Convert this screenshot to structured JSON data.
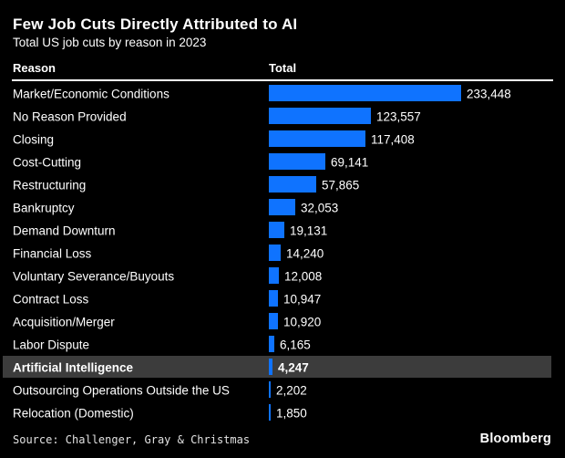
{
  "header": {
    "title": "Few Job Cuts Directly Attributed to AI",
    "subtitle": "Total US job cuts by reason in 2023"
  },
  "table": {
    "columns": {
      "reason": "Reason",
      "total": "Total"
    }
  },
  "chart_data": {
    "type": "bar",
    "orientation": "horizontal",
    "title": "Few Job Cuts Directly Attributed to AI",
    "subtitle": "Total US job cuts by reason in 2023",
    "xlabel": "Total",
    "ylabel": "Reason",
    "xlim": [
      0,
      233448
    ],
    "grid": false,
    "legend": false,
    "bar_color": "#0f73ff",
    "highlight_bg": "#3c3c3c",
    "highlighted_category": "Artificial Intelligence",
    "categories": [
      "Market/Economic Conditions",
      "No Reason Provided",
      "Closing",
      "Cost-Cutting",
      "Restructuring",
      "Bankruptcy",
      "Demand Downturn",
      "Financial Loss",
      "Voluntary Severance/Buyouts",
      "Contract Loss",
      "Acquisition/Merger",
      "Labor Dispute",
      "Artificial Intelligence",
      "Outsourcing Operations Outside the US",
      "Relocation (Domestic)"
    ],
    "values": [
      233448,
      123557,
      117408,
      69141,
      57865,
      32053,
      19131,
      14240,
      12008,
      10947,
      10920,
      6165,
      4247,
      2202,
      1850
    ],
    "value_labels": [
      "233,448",
      "123,557",
      "117,408",
      "69,141",
      "57,865",
      "32,053",
      "19,131",
      "14,240",
      "12,008",
      "10,947",
      "10,920",
      "6,165",
      "4,247",
      "2,202",
      "1,850"
    ]
  },
  "footer": {
    "source": "Source: Challenger, Gray & Christmas",
    "brand": "Bloomberg"
  }
}
